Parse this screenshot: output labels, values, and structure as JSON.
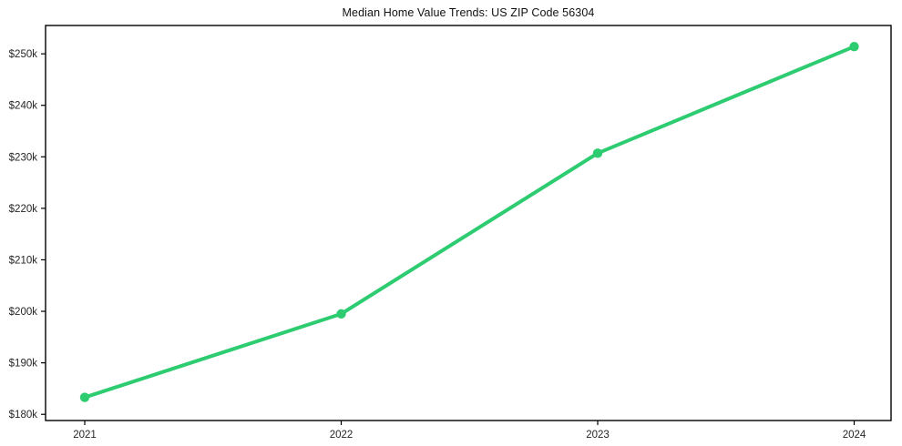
{
  "chart": {
    "title": "Median Home Value Trends: US ZIP Code 56304"
  },
  "chart_data": {
    "type": "line",
    "title": "Median Home Value Trends: US ZIP Code 56304",
    "x": [
      2021,
      2022,
      2023,
      2024
    ],
    "xtick_labels": [
      "2021",
      "2022",
      "2023",
      "2024"
    ],
    "series": [
      {
        "name": "Median Home Value",
        "values": [
          183300,
          199500,
          230700,
          251400
        ]
      }
    ],
    "xlabel": "",
    "ylabel": "",
    "ylim": [
      178800,
      255500
    ],
    "yticks": [
      180000,
      190000,
      200000,
      210000,
      220000,
      230000,
      240000,
      250000
    ],
    "ytick_labels": [
      "$180k",
      "$190k",
      "$200k",
      "$210k",
      "$220k",
      "$230k",
      "$240k",
      "$250k"
    ],
    "grid": false,
    "legend": "none",
    "line_color": "#2ecc71",
    "marker": "circle",
    "axis_color": "#000000",
    "background": "#ffffff"
  }
}
